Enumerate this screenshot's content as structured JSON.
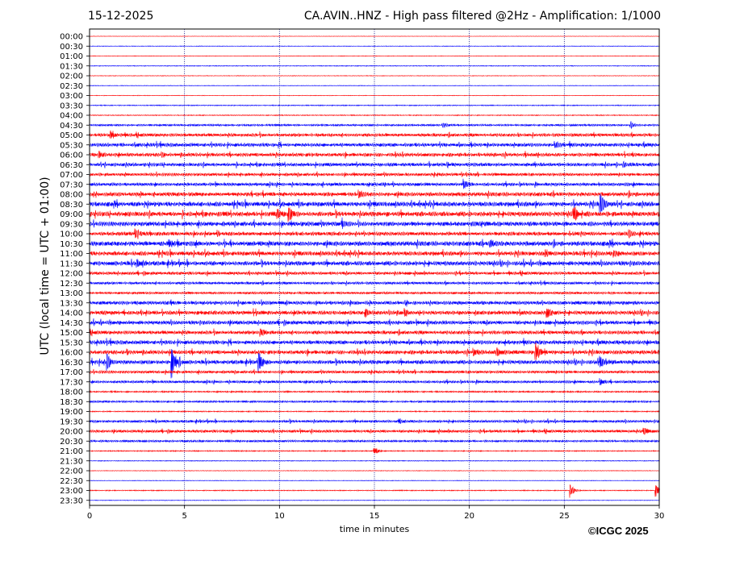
{
  "header": {
    "date": "15-12-2025",
    "title": "CA.AVIN..HNZ - High pass filtered @2Hz - Amplification: 1/1000"
  },
  "footer": {
    "copyright": "©ICGC 2025"
  },
  "colors": {
    "trace_a": "#ff0000",
    "trace_b": "#0000ff",
    "grid": "#000080",
    "axis": "#000000"
  },
  "chart_data": {
    "type": "line",
    "title": "CA.AVIN..HNZ - High pass filtered @2Hz - Amplification: 1/1000",
    "xlabel": "time in minutes",
    "ylabel": "UTC (local time = UTC + 01:00)",
    "xlim": [
      0,
      30
    ],
    "x_ticks": [
      0,
      5,
      10,
      15,
      20,
      25,
      30
    ],
    "vertical_gridlines_at": [
      5,
      10,
      15,
      20,
      25
    ],
    "grid": "vertical dotted",
    "trace_color_order": [
      "red",
      "blue"
    ],
    "rows": [
      "00:00",
      "00:30",
      "01:00",
      "01:30",
      "02:00",
      "02:30",
      "03:00",
      "03:30",
      "04:00",
      "04:30",
      "05:00",
      "05:30",
      "06:00",
      "06:30",
      "07:00",
      "07:30",
      "08:00",
      "08:30",
      "09:00",
      "09:30",
      "10:00",
      "10:30",
      "11:00",
      "11:30",
      "12:00",
      "12:30",
      "13:00",
      "13:30",
      "14:00",
      "14:30",
      "15:00",
      "15:30",
      "16:00",
      "16:30",
      "17:00",
      "17:30",
      "18:00",
      "18:30",
      "19:00",
      "19:30",
      "20:00",
      "20:30",
      "21:00",
      "21:30",
      "22:00",
      "22:30",
      "23:00",
      "23:30"
    ],
    "row_noise_level": [
      0.2,
      0.3,
      0.3,
      0.4,
      0.3,
      0.3,
      0.3,
      0.5,
      0.5,
      1.0,
      1.6,
      1.8,
      1.8,
      1.7,
      1.5,
      1.6,
      2.0,
      2.3,
      2.4,
      2.2,
      1.9,
      2.3,
      2.1,
      2.2,
      1.5,
      1.3,
      1.2,
      1.8,
      2.0,
      1.9,
      1.8,
      2.0,
      2.0,
      2.0,
      1.4,
      1.3,
      0.8,
      1.0,
      0.6,
      1.3,
      1.4,
      1.1,
      0.6,
      0.4,
      0.3,
      0.3,
      0.5,
      0.3
    ],
    "events": [
      {
        "row": "04:30",
        "minute": 18.6,
        "amplitude": 3
      },
      {
        "row": "04:30",
        "minute": 28.5,
        "amplitude": 4
      },
      {
        "row": "05:00",
        "minute": 1.1,
        "amplitude": 4
      },
      {
        "row": "05:30",
        "minute": 24.5,
        "amplitude": 3
      },
      {
        "row": "06:00",
        "minute": 0.5,
        "amplitude": 3
      },
      {
        "row": "06:00",
        "minute": 3.8,
        "amplitude": 3
      },
      {
        "row": "06:30",
        "minute": 28.1,
        "amplitude": 3
      },
      {
        "row": "07:30",
        "minute": 19.7,
        "amplitude": 6
      },
      {
        "row": "08:00",
        "minute": 14.2,
        "amplitude": 3
      },
      {
        "row": "08:30",
        "minute": 26.9,
        "amplitude": 14
      },
      {
        "row": "09:00",
        "minute": 10.5,
        "amplitude": 9
      },
      {
        "row": "09:00",
        "minute": 9.9,
        "amplitude": 5
      },
      {
        "row": "09:00",
        "minute": 25.5,
        "amplitude": 8
      },
      {
        "row": "09:30",
        "minute": 13.3,
        "amplitude": 5
      },
      {
        "row": "10:00",
        "minute": 2.4,
        "amplitude": 5
      },
      {
        "row": "10:00",
        "minute": 28.4,
        "amplitude": 5
      },
      {
        "row": "10:30",
        "minute": 4.2,
        "amplitude": 4
      },
      {
        "row": "10:30",
        "minute": 21.1,
        "amplitude": 5
      },
      {
        "row": "11:00",
        "minute": 24.0,
        "amplitude": 4
      },
      {
        "row": "11:00",
        "minute": 27.6,
        "amplitude": 4
      },
      {
        "row": "11:30",
        "minute": 2.5,
        "amplitude": 4
      },
      {
        "row": "14:00",
        "minute": 14.5,
        "amplitude": 5
      },
      {
        "row": "14:00",
        "minute": 16.6,
        "amplitude": 4
      },
      {
        "row": "14:00",
        "minute": 24.1,
        "amplitude": 6
      },
      {
        "row": "15:00",
        "minute": 9.0,
        "amplitude": 5
      },
      {
        "row": "16:00",
        "minute": 20.2,
        "amplitude": 5
      },
      {
        "row": "16:00",
        "minute": 21.5,
        "amplitude": 5
      },
      {
        "row": "16:00",
        "minute": 23.5,
        "amplitude": 9
      },
      {
        "row": "16:30",
        "minute": 0.9,
        "amplitude": 12
      },
      {
        "row": "16:30",
        "minute": 4.3,
        "amplitude": 22
      },
      {
        "row": "16:30",
        "minute": 8.9,
        "amplitude": 12
      },
      {
        "row": "16:30",
        "minute": 26.9,
        "amplitude": 6
      },
      {
        "row": "17:30",
        "minute": 26.9,
        "amplitude": 4
      },
      {
        "row": "19:30",
        "minute": 16.3,
        "amplitude": 3
      },
      {
        "row": "20:00",
        "minute": 29.2,
        "amplitude": 4
      },
      {
        "row": "21:00",
        "minute": 15.0,
        "amplitude": 5
      },
      {
        "row": "23:00",
        "minute": 25.3,
        "amplitude": 9
      },
      {
        "row": "23:00",
        "minute": 29.8,
        "amplitude": 8
      }
    ]
  }
}
